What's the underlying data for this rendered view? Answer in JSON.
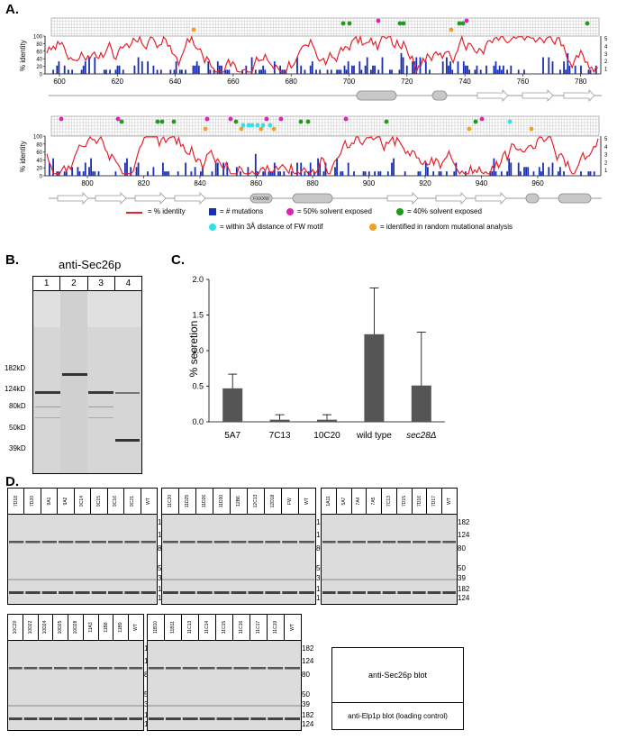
{
  "panel_labels": {
    "a": "A.",
    "b": "B.",
    "c": "C.",
    "d": "D."
  },
  "colors": {
    "identity": "#e8202a",
    "mutations": "#1a2fb0",
    "solvent50": "#e020b0",
    "solvent40": "#1e9a1e",
    "fw": "#30e0e8",
    "random": "#f0a020",
    "bar": "#555555"
  },
  "panel_a": {
    "ylabel_left": "% identity",
    "yticks_left": [
      "100",
      "80",
      "60",
      "40",
      "20",
      "0"
    ],
    "yticks_right": [
      "5",
      "4",
      "3",
      "2",
      "1"
    ],
    "top_xticks": [
      "600",
      "620",
      "640",
      "660",
      "680",
      "700",
      "720",
      "740",
      "760",
      "780"
    ],
    "bottom_xticks": [
      "800",
      "820",
      "840",
      "860",
      "880",
      "900",
      "920",
      "940",
      "960"
    ],
    "fw_label": "FXXXW",
    "legend": {
      "identity": "= % identity",
      "mutations": "= # mutations",
      "solvent50": "= 50% solvent exposed",
      "solvent40": "= 40% solvent exposed",
      "fw": "= within 3Å distance of FW motif",
      "random": "= identified in random mutational analysis"
    }
  },
  "panel_b": {
    "title": "anti-Sec26p",
    "lanes": [
      "1",
      "2",
      "3",
      "4"
    ],
    "markers": [
      "182kD",
      "124kD",
      "80kD",
      "50kD",
      "39kD"
    ]
  },
  "chart_data": {
    "type": "bar",
    "categories": [
      "5A7",
      "7C13",
      "10C20",
      "wild type",
      "sec28Δ"
    ],
    "values": [
      0.47,
      0.03,
      0.03,
      1.23,
      0.51
    ],
    "errors": [
      0.2,
      0.07,
      0.07,
      0.65,
      0.75
    ],
    "title": "",
    "xlabel": "",
    "ylabel": "% secretion",
    "ylim": [
      0,
      2.0
    ],
    "yticks": [
      "2.0",
      "1.5",
      "1.0",
      "0.5",
      "0.0"
    ]
  },
  "panel_d": {
    "blots": [
      {
        "lanes": [
          "7D18",
          "7D20",
          "9A1",
          "9A2",
          "9C14",
          "9C15",
          "9C16",
          "9C21",
          "WT"
        ]
      },
      {
        "lanes": [
          "11C20",
          "11D25",
          "11D26",
          "11D30",
          "12B6",
          "12C13",
          "12D18",
          "FW",
          "WT"
        ]
      },
      {
        "lanes": [
          "1A11",
          "5A7",
          "7A4",
          "7A5",
          "7C13",
          "7D15",
          "7D16",
          "7D17",
          "WT"
        ]
      },
      {
        "lanes": [
          "10C20",
          "10D22",
          "10D24",
          "10D25",
          "10D28",
          "11A3",
          "11B8",
          "11B9",
          "WT"
        ]
      },
      {
        "lanes": [
          "11B10",
          "11B11",
          "11C13",
          "11C14",
          "11C15",
          "11C16",
          "11C17",
          "11C19",
          "WT"
        ]
      }
    ],
    "mw_top": [
      "182",
      "124",
      "80",
      "50",
      "39"
    ],
    "mw_bottom": [
      "182",
      "124"
    ],
    "legend_top": "anti-Sec26p blot",
    "legend_bottom": "anti-Elp1p blot (loading control)"
  }
}
